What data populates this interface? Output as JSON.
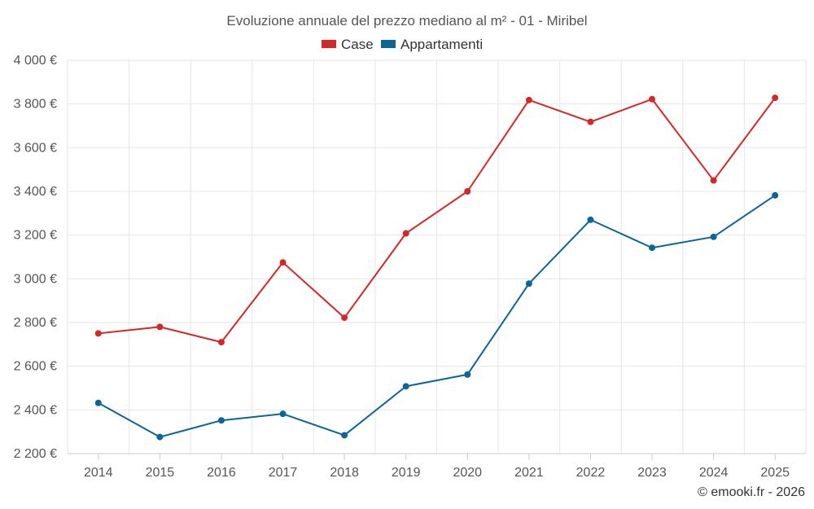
{
  "chart_data": {
    "type": "line",
    "title": "Evoluzione annuale del prezzo mediano al m² - 01 - Miribel",
    "categories": [
      "2014",
      "2015",
      "2016",
      "2017",
      "2018",
      "2019",
      "2020",
      "2021",
      "2022",
      "2023",
      "2024",
      "2025"
    ],
    "series": [
      {
        "name": "Case",
        "color": "#d62728",
        "values": [
          2750,
          2780,
          2710,
          3075,
          2822,
          3208,
          3400,
          3818,
          3718,
          3822,
          3450,
          3828
        ]
      },
      {
        "name": "Appartamenti",
        "color": "#0a6696",
        "values": [
          2432,
          2276,
          2352,
          2382,
          2284,
          2508,
          2562,
          2978,
          3270,
          3142,
          3192,
          3382
        ]
      }
    ],
    "y_ticks": [
      2200,
      2400,
      2600,
      2800,
      3000,
      3200,
      3400,
      3600,
      3800,
      4000
    ],
    "y_tick_labels": [
      "2 200 €",
      "2 400 €",
      "2 600 €",
      "2 800 €",
      "3 000 €",
      "3 200 €",
      "3 400 €",
      "3 600 €",
      "3 800 €",
      "4 000 €"
    ],
    "ylim": [
      2200,
      4000
    ],
    "xlabel": "",
    "ylabel": "",
    "grid": true,
    "legend_position": "top-center",
    "credit": "© emooki.fr - 2026"
  },
  "colors": {
    "grid": "#e6e6e6",
    "axis": "#cccccc",
    "text": "#555555"
  }
}
